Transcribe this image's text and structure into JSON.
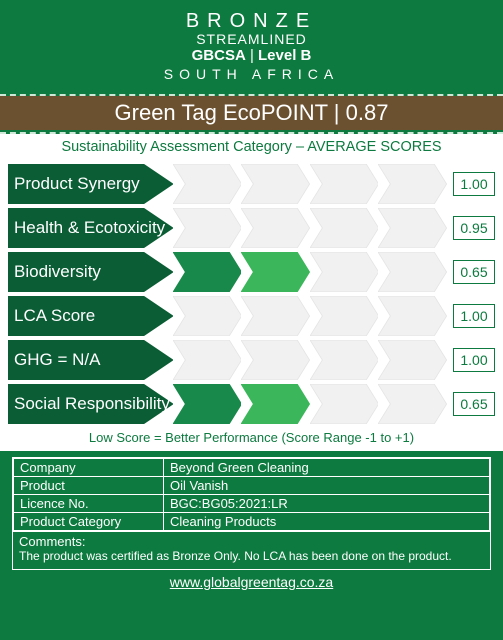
{
  "header": {
    "tier": "BRONZE",
    "streamlined": "STREAMLINED",
    "org": "GBCSA",
    "divider": " | ",
    "level": "Level B",
    "country": "SOUTH AFRICA"
  },
  "ecopoint": {
    "label": "Green Tag EcoPOINT  | ",
    "value": "0.87"
  },
  "subhead": "Sustainability Assessment Category – AVERAGE SCORES",
  "chart": {
    "type": "bar",
    "score_min": -1,
    "score_max": 1,
    "segments": 5,
    "colors": {
      "background": "#ffffff",
      "score_border": "#0d7a3f",
      "score_text": "#0d7a3f",
      "chev_fills": [
        "#0a5d34",
        "#18894a",
        "#3cb65a",
        "#7ecb72",
        "#d7e9d0"
      ]
    },
    "rows": [
      {
        "label": "Product Synergy",
        "score": "1.00",
        "filled": 1
      },
      {
        "label": "Health & Ecotoxicity",
        "score": "0.95",
        "filled": 1
      },
      {
        "label": "Biodiversity",
        "score": "0.65",
        "filled": 3
      },
      {
        "label": "LCA Score",
        "score": "1.00",
        "filled": 1
      },
      {
        "label": "GHG = N/A",
        "score": "1.00",
        "filled": 1
      },
      {
        "label": "Social Responsibility",
        "score": "0.65",
        "filled": 3
      }
    ]
  },
  "footnote": "Low Score = Better Performance (Score Range -1 to +1)",
  "info": {
    "rows": [
      [
        "Company",
        "Beyond Green Cleaning"
      ],
      [
        "Product",
        "Oil Vanish"
      ],
      [
        "Licence No.",
        "BGC:BG05:2021:LR"
      ],
      [
        "Product Category",
        "Cleaning Products"
      ]
    ],
    "comments_label": "Comments:",
    "comments": "The product was certified as Bronze Only. No LCA has been done on the product."
  },
  "url": "www.globalgreentag.co.za"
}
